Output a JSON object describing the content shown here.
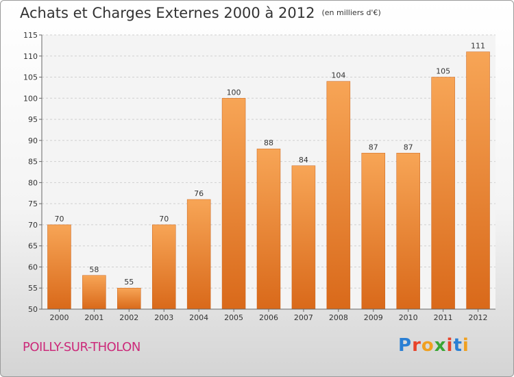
{
  "chart_data": {
    "type": "bar",
    "title": "Achats et Charges Externes 2000 à 2012",
    "subtitle": "(en milliers d'€)",
    "categories": [
      "2000",
      "2001",
      "2002",
      "2003",
      "2004",
      "2005",
      "2006",
      "2007",
      "2008",
      "2009",
      "2010",
      "2011",
      "2012"
    ],
    "values": [
      70,
      58,
      55,
      70,
      76,
      100,
      88,
      84,
      104,
      87,
      87,
      105,
      111
    ],
    "ylim": [
      50,
      115
    ],
    "yticks": [
      50,
      55,
      60,
      65,
      70,
      75,
      80,
      85,
      90,
      95,
      100,
      105,
      110,
      115
    ],
    "grid": true,
    "bar_color": "#f0892d"
  },
  "footer": {
    "city": "POILLY-SUR-THOLON",
    "logo_letters": [
      "P",
      "r",
      "o",
      "x",
      "i",
      "t",
      "i"
    ],
    "logo_colors": [
      "#2a7fd4",
      "#e8432a",
      "#f0a020",
      "#3aa635",
      "#e8432a",
      "#2a7fd4",
      "#f0a020"
    ]
  }
}
